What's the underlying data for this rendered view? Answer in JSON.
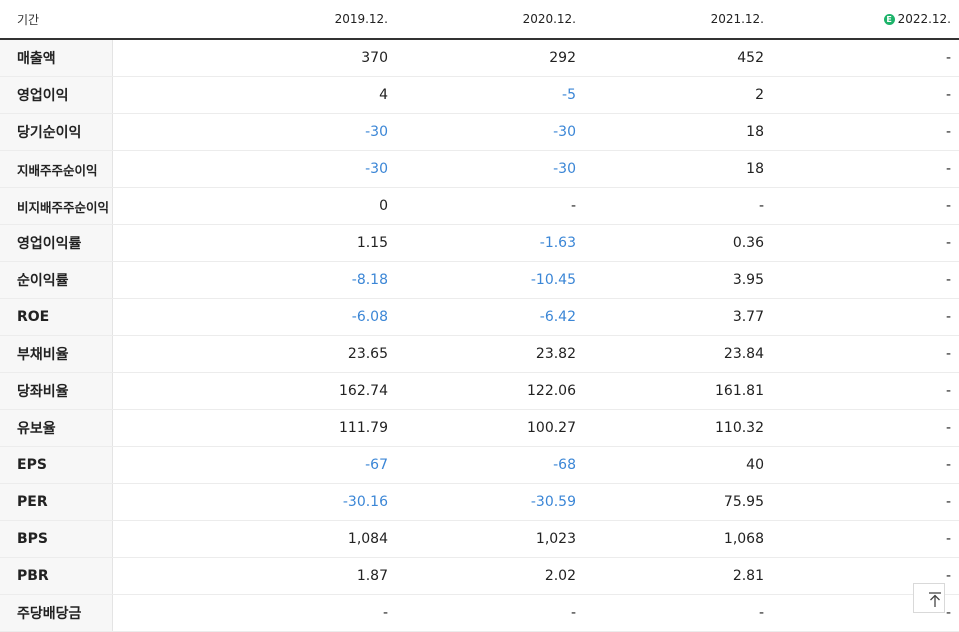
{
  "header": {
    "period_label": "기간",
    "years": [
      "2019.12.",
      "2020.12.",
      "2021.12.",
      "2022.12."
    ],
    "estimate_badge": "E"
  },
  "rows": [
    {
      "label": "매출액",
      "values": [
        "370",
        "292",
        "452",
        "-"
      ]
    },
    {
      "label": "영업이익",
      "values": [
        "4",
        "-5",
        "2",
        "-"
      ]
    },
    {
      "label": "당기순이익",
      "values": [
        "-30",
        "-30",
        "18",
        "-"
      ]
    },
    {
      "label": "지배주주순이익",
      "values": [
        "-30",
        "-30",
        "18",
        "-"
      ]
    },
    {
      "label": "비지배주주순이익",
      "values": [
        "0",
        "-",
        "-",
        "-"
      ]
    },
    {
      "label": "영업이익률",
      "values": [
        "1.15",
        "-1.63",
        "0.36",
        "-"
      ]
    },
    {
      "label": "순이익률",
      "values": [
        "-8.18",
        "-10.45",
        "3.95",
        "-"
      ]
    },
    {
      "label": "ROE",
      "values": [
        "-6.08",
        "-6.42",
        "3.77",
        "-"
      ]
    },
    {
      "label": "부채비율",
      "values": [
        "23.65",
        "23.82",
        "23.84",
        "-"
      ]
    },
    {
      "label": "당좌비율",
      "values": [
        "162.74",
        "122.06",
        "161.81",
        "-"
      ]
    },
    {
      "label": "유보율",
      "values": [
        "111.79",
        "100.27",
        "110.32",
        "-"
      ]
    },
    {
      "label": "EPS",
      "values": [
        "-67",
        "-68",
        "40",
        "-"
      ]
    },
    {
      "label": "PER",
      "values": [
        "-30.16",
        "-30.59",
        "75.95",
        "-"
      ]
    },
    {
      "label": "BPS",
      "values": [
        "1,084",
        "1,023",
        "1,068",
        "-"
      ]
    },
    {
      "label": "PBR",
      "values": [
        "1.87",
        "2.02",
        "2.81",
        "-"
      ]
    },
    {
      "label": "주당배당금",
      "values": [
        "-",
        "-",
        "-",
        "-"
      ]
    }
  ],
  "colors": {
    "negative": "#3b86d6",
    "estimate_badge": "#1db36a"
  },
  "controls": {
    "scroll_top_icon": "arrow-up-to-top-icon"
  }
}
